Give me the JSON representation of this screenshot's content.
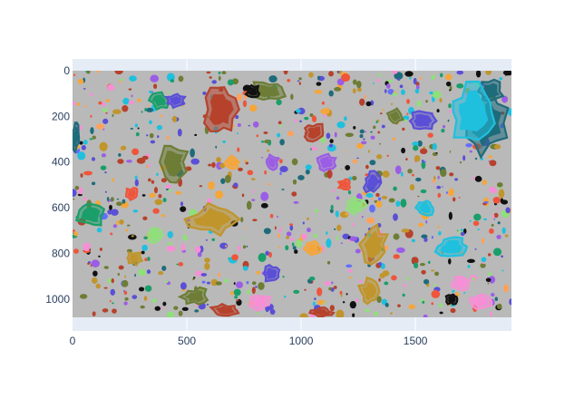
{
  "chart_data": {
    "type": "heatmap",
    "title": "",
    "xlabel": "",
    "ylabel": "",
    "xlim": [
      0,
      1920
    ],
    "ylim": [
      1080,
      0
    ],
    "image_extent": {
      "x": [
        0,
        1920
      ],
      "y": [
        0,
        1080
      ]
    },
    "x_ticks": [
      0,
      500,
      1000,
      1500
    ],
    "y_ticks": [
      0,
      200,
      400,
      600,
      800,
      1000
    ],
    "grid": true,
    "legend": "none",
    "background_region_color": "#b9b9b9",
    "segments": [
      {
        "class": "dark-red",
        "color": "#b6422c",
        "center": [
          650,
          170
        ],
        "size": [
          140,
          230
        ]
      },
      {
        "class": "dark-red",
        "color": "#b6422c",
        "center": [
          1060,
          270
        ],
        "size": [
          90,
          80
        ]
      },
      {
        "class": "dark-red",
        "color": "#b6422c",
        "center": [
          670,
          1050
        ],
        "size": [
          120,
          50
        ]
      },
      {
        "class": "dark-red",
        "color": "#b6422c",
        "center": [
          1090,
          1060
        ],
        "size": [
          90,
          40
        ]
      },
      {
        "class": "olive",
        "color": "#6d7d36",
        "center": [
          440,
          400
        ],
        "size": [
          120,
          180
        ]
      },
      {
        "class": "olive",
        "color": "#6d7d36",
        "center": [
          850,
          90
        ],
        "size": [
          160,
          90
        ]
      },
      {
        "class": "olive",
        "color": "#6d7d36",
        "center": [
          540,
          990
        ],
        "size": [
          120,
          70
        ]
      },
      {
        "class": "olive",
        "color": "#6d7d36",
        "center": [
          1410,
          200
        ],
        "size": [
          70,
          60
        ]
      },
      {
        "class": "gold",
        "color": "#c0952c",
        "center": [
          620,
          650
        ],
        "size": [
          230,
          140
        ]
      },
      {
        "class": "gold",
        "color": "#c0952c",
        "center": [
          1320,
          760
        ],
        "size": [
          110,
          170
        ]
      },
      {
        "class": "gold",
        "color": "#c0952c",
        "center": [
          1300,
          970
        ],
        "size": [
          90,
          110
        ]
      },
      {
        "class": "gold",
        "color": "#c0952c",
        "center": [
          270,
          820
        ],
        "size": [
          80,
          60
        ]
      },
      {
        "class": "teal-dark",
        "color": "#1e6b7b",
        "center": [
          1810,
          230
        ],
        "size": [
          180,
          260
        ]
      },
      {
        "class": "teal-dark",
        "color": "#1e6b7b",
        "center": [
          1830,
          90
        ],
        "size": [
          110,
          90
        ]
      },
      {
        "class": "teal-dark",
        "color": "#1e6b7b",
        "center": [
          15,
          290
        ],
        "size": [
          30,
          120
        ]
      },
      {
        "class": "green",
        "color": "#1a9e6a",
        "center": [
          80,
          630
        ],
        "size": [
          120,
          100
        ]
      },
      {
        "class": "green",
        "color": "#1a9e6a",
        "center": [
          380,
          130
        ],
        "size": [
          90,
          70
        ]
      },
      {
        "class": "cyan",
        "color": "#1fc0de",
        "center": [
          1750,
          180
        ],
        "size": [
          220,
          240
        ]
      },
      {
        "class": "cyan",
        "color": "#1fc0de",
        "center": [
          1660,
          770
        ],
        "size": [
          140,
          90
        ]
      },
      {
        "class": "cyan",
        "color": "#1fc0de",
        "center": [
          1540,
          600
        ],
        "size": [
          90,
          70
        ]
      },
      {
        "class": "blue-violet",
        "color": "#5a4fd6",
        "center": [
          450,
          130
        ],
        "size": [
          80,
          60
        ]
      },
      {
        "class": "blue-violet",
        "color": "#5a4fd6",
        "center": [
          1530,
          220
        ],
        "size": [
          120,
          80
        ]
      },
      {
        "class": "blue-violet",
        "color": "#5a4fd6",
        "center": [
          1310,
          490
        ],
        "size": [
          70,
          90
        ]
      },
      {
        "class": "blue-violet",
        "color": "#5a4fd6",
        "center": [
          870,
          890
        ],
        "size": [
          70,
          70
        ]
      },
      {
        "class": "purple",
        "color": "#9b5de5",
        "center": [
          1110,
          400
        ],
        "size": [
          80,
          70
        ]
      },
      {
        "class": "purple",
        "color": "#9b5de5",
        "center": [
          870,
          400
        ],
        "size": [
          60,
          60
        ]
      },
      {
        "class": "pink",
        "color": "#f78fd6",
        "center": [
          1780,
          1010
        ],
        "size": [
          100,
          60
        ]
      },
      {
        "class": "pink",
        "color": "#f78fd6",
        "center": [
          820,
          1010
        ],
        "size": [
          90,
          70
        ]
      },
      {
        "class": "pink",
        "color": "#f78fd6",
        "center": [
          1700,
          930
        ],
        "size": [
          80,
          60
        ]
      },
      {
        "class": "light-green",
        "color": "#8fe07a",
        "center": [
          1240,
          590
        ],
        "size": [
          80,
          70
        ]
      },
      {
        "class": "light-green",
        "color": "#8fe07a",
        "center": [
          360,
          720
        ],
        "size": [
          70,
          60
        ]
      },
      {
        "class": "orange",
        "color": "#f5a63a",
        "center": [
          700,
          400
        ],
        "size": [
          60,
          50
        ]
      },
      {
        "class": "orange",
        "color": "#f5a63a",
        "center": [
          1050,
          780
        ],
        "size": [
          70,
          60
        ]
      },
      {
        "class": "red",
        "color": "#ef553b",
        "center": [
          260,
          540
        ],
        "size": [
          60,
          50
        ]
      },
      {
        "class": "red",
        "color": "#ef553b",
        "center": [
          1190,
          500
        ],
        "size": [
          50,
          50
        ]
      },
      {
        "class": "black",
        "color": "#111111",
        "center": [
          790,
          90
        ],
        "size": [
          60,
          50
        ]
      },
      {
        "class": "black",
        "color": "#111111",
        "center": [
          1660,
          1000
        ],
        "size": [
          50,
          50
        ]
      },
      {
        "class": "black",
        "color": "#111111",
        "center": [
          1905,
          10
        ],
        "size": [
          30,
          20
        ]
      }
    ]
  }
}
